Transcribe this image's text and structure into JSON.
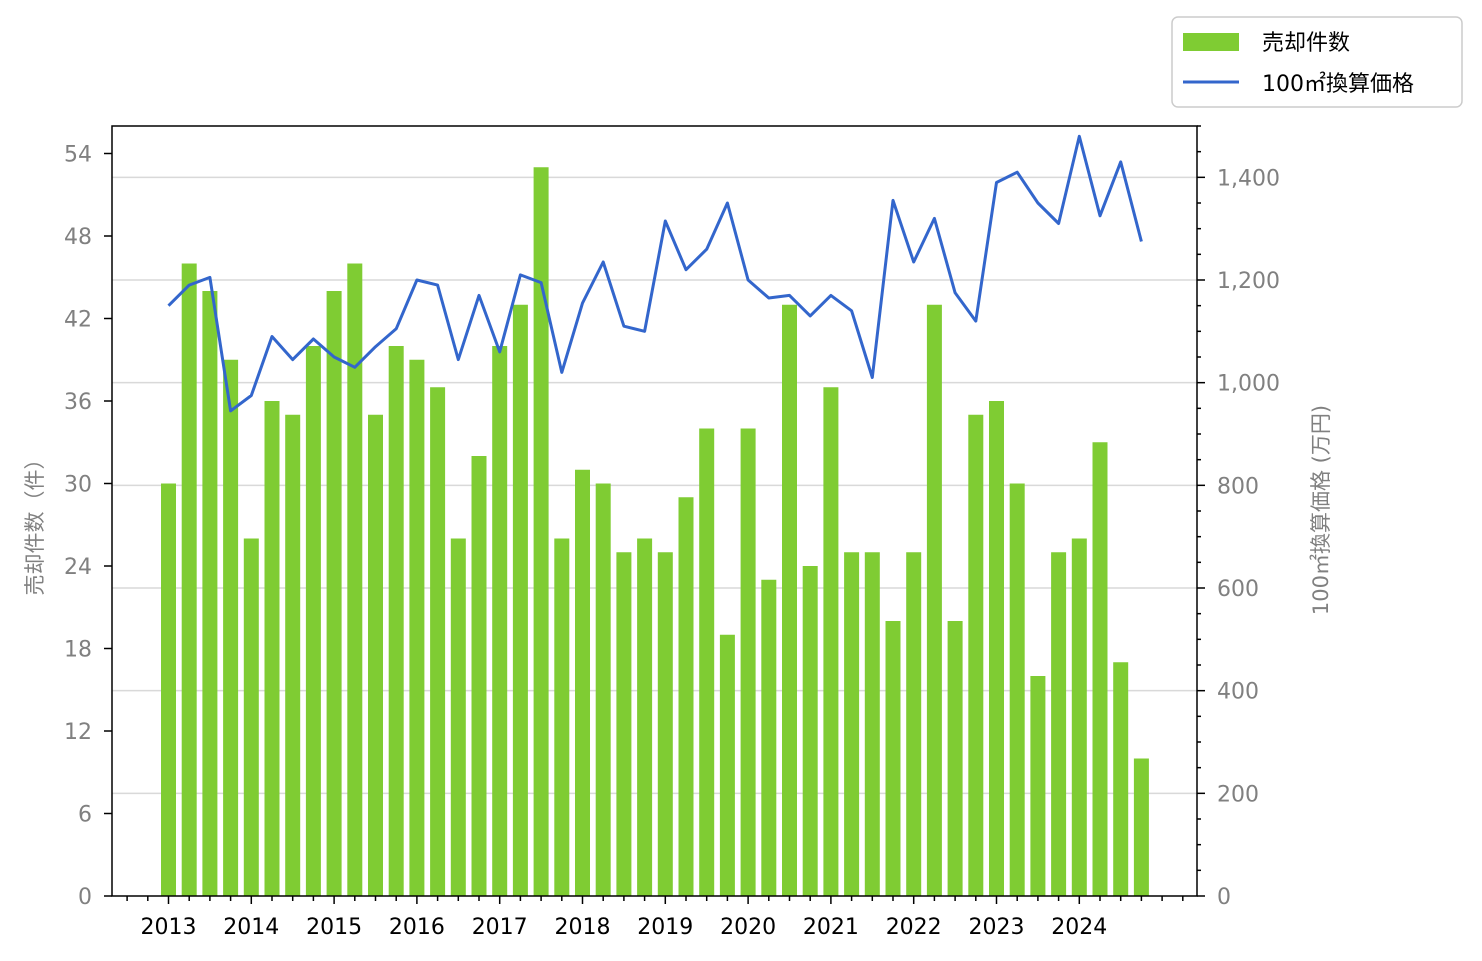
{
  "chart_data": {
    "type": "bar",
    "x_tick_labels": [
      "2013",
      "2014",
      "2015",
      "2016",
      "2017",
      "2018",
      "2019",
      "2020",
      "2021",
      "2022",
      "2023",
      "2024"
    ],
    "y_left_label": "売却件数（件）",
    "y_right_label": "100㎡換算価格 (万円)",
    "y_left_ticks": [
      "0",
      "6",
      "12",
      "18",
      "24",
      "30",
      "36",
      "42",
      "48",
      "54"
    ],
    "y_right_ticks": [
      "0",
      "200",
      "400",
      "600",
      "800",
      "1,000",
      "1,200",
      "1,400"
    ],
    "ylim_left": [
      0,
      56
    ],
    "ylim_right": [
      0,
      1500
    ],
    "grid": "horizontal, right axis",
    "legend_position": "top-right, outside",
    "colors": {
      "bars": "#7fcc33",
      "line": "#3366cc"
    },
    "series": [
      {
        "name": "売却件数",
        "axis": "left",
        "type": "bar",
        "values": [
          30,
          46,
          44,
          39,
          26,
          36,
          35,
          40,
          44,
          46,
          35,
          40,
          39,
          37,
          26,
          32,
          40,
          43,
          53,
          26,
          31,
          30,
          25,
          26,
          25,
          29,
          34,
          19,
          34,
          23,
          43,
          24,
          37,
          25,
          25,
          20,
          25,
          43,
          20,
          35,
          36,
          30,
          16,
          25,
          26,
          33,
          17,
          10
        ]
      },
      {
        "name": "100㎡換算価格",
        "axis": "right",
        "type": "line",
        "values": [
          1150,
          1190,
          1205,
          945,
          975,
          1090,
          1045,
          1085,
          1050,
          1030,
          1070,
          1105,
          1200,
          1190,
          1045,
          1170,
          1060,
          1210,
          1195,
          1020,
          1155,
          1235,
          1110,
          1100,
          1315,
          1220,
          1260,
          1350,
          1200,
          1165,
          1170,
          1130,
          1170,
          1140,
          1010,
          1355,
          1235,
          1320,
          1175,
          1120,
          1390,
          1410,
          1350,
          1310,
          1480,
          1325,
          1430,
          1275
        ]
      }
    ]
  }
}
